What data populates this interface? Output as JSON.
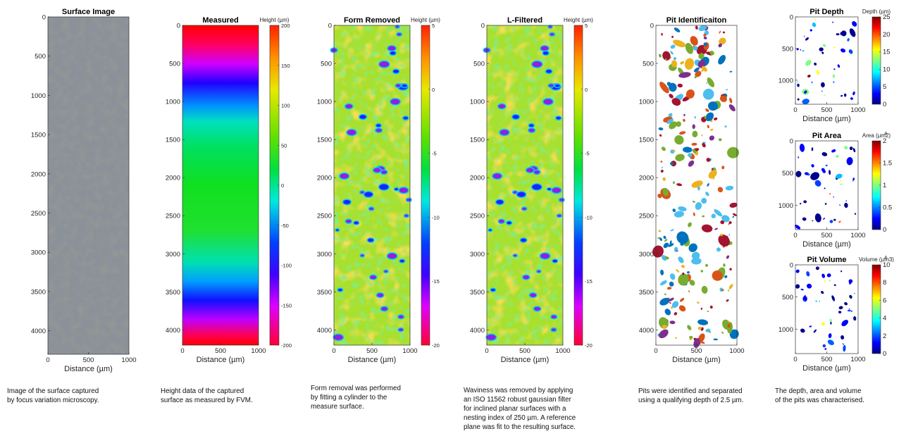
{
  "panels": [
    {
      "title": "Surface Image",
      "xlabel": "Distance (µm)",
      "xlim": [
        0,
        1000
      ],
      "xticks": [
        0,
        500,
        1000
      ],
      "ylim": [
        0,
        4300
      ],
      "yticks": [
        0,
        500,
        1000,
        1500,
        2000,
        2500,
        3000,
        3500,
        4000
      ]
    },
    {
      "title": "Measured",
      "xlabel": "Distance (µm)",
      "xlim": [
        0,
        1000
      ],
      "xticks": [
        0,
        500,
        1000
      ],
      "ylim": [
        0,
        4200
      ],
      "yticks": [
        0,
        500,
        1000,
        1500,
        2000,
        2500,
        3000,
        3500,
        4000
      ],
      "colorbar": {
        "label": "Height (µm)",
        "lim": [
          -200,
          200
        ],
        "ticks": [
          200,
          150,
          100,
          50,
          0,
          -50,
          -100,
          -150,
          -200
        ]
      }
    },
    {
      "title": "Form Removed",
      "xlabel": "Distance (µm)",
      "xlim": [
        0,
        1000
      ],
      "xticks": [
        0,
        500,
        1000
      ],
      "ylim": [
        0,
        4200
      ],
      "yticks": [
        0,
        500,
        1000,
        1500,
        2000,
        2500,
        3000,
        3500,
        4000
      ],
      "colorbar": {
        "label": "Height (µm)",
        "lim": [
          -20,
          5
        ],
        "ticks": [
          5,
          0,
          -5,
          -10,
          -15,
          -20
        ]
      }
    },
    {
      "title": "L-Filtered",
      "xlabel": "Distance (µm)",
      "xlim": [
        0,
        1000
      ],
      "xticks": [
        0,
        500,
        1000
      ],
      "ylim": [
        0,
        4200
      ],
      "yticks": [
        0,
        500,
        1000,
        1500,
        2000,
        2500,
        3000,
        3500,
        4000
      ],
      "colorbar": {
        "label": "Height (µm)",
        "lim": [
          -20,
          5
        ],
        "ticks": [
          5,
          0,
          -5,
          -10,
          -15,
          -20
        ]
      }
    },
    {
      "title": "Pit Identificaiton",
      "xlabel": "Distance (µm)",
      "xlim": [
        0,
        1000
      ],
      "xticks": [
        0,
        500,
        1000
      ],
      "ylim": [
        0,
        4200
      ],
      "yticks": [
        0,
        500,
        1000,
        1500,
        2000,
        2500,
        3000,
        3500,
        4000
      ]
    },
    {
      "title": "Pit Depth",
      "xlabel": "Distance (µm)",
      "xlim": [
        0,
        1000
      ],
      "xticks": [
        0,
        500,
        1000
      ],
      "ylim": [
        0,
        1380
      ],
      "yticks": [
        0,
        500,
        1000
      ],
      "colorbar": {
        "label": "Depth (µm)",
        "lim": [
          0,
          25
        ],
        "ticks": [
          0,
          5,
          10,
          15,
          20,
          25
        ]
      }
    },
    {
      "title": "Pit Area",
      "xlabel": "Distance (µm)",
      "xlim": [
        0,
        1000
      ],
      "xticks": [
        0,
        500,
        1000
      ],
      "ylim": [
        0,
        1380
      ],
      "yticks": [
        0,
        500,
        1000
      ],
      "colorbar": {
        "label": "Area (µm2)",
        "exponent": "4",
        "lim": [
          0,
          2
        ],
        "ticks": [
          0,
          0.5,
          1,
          1.5,
          2
        ]
      }
    },
    {
      "title": "Pit Volume",
      "xlabel": "Distance (µm)",
      "xlim": [
        0,
        1000
      ],
      "xticks": [
        0,
        500,
        1000
      ],
      "ylim": [
        0,
        1380
      ],
      "yticks": [
        0,
        500,
        1000
      ],
      "colorbar": {
        "label": "Volume (µm3)",
        "exponent": "4",
        "lim": [
          0,
          10
        ],
        "ticks": [
          0,
          2,
          4,
          6,
          8,
          10
        ]
      }
    }
  ],
  "captions": [
    [
      "Image of the surface captured",
      "by focus variation microscopy."
    ],
    [
      "Height data of the captured",
      "surface as measured by FVM."
    ],
    [
      "Form removal was performed",
      "by fitting a cylinder to the",
      "measure surface."
    ],
    [
      "Waviness was removed by applying",
      "an ISO 11562 robust gaussian filter",
      "for inclined planar surfaces with a",
      "nesting index of 250 µm. A reference",
      "plane was fit to the resulting surface."
    ],
    [
      "Pits were identified and separated",
      "using a qualifying depth of 2.5 µm."
    ],
    [
      "The depth, area and volume",
      "of the pits was characterised."
    ]
  ]
}
